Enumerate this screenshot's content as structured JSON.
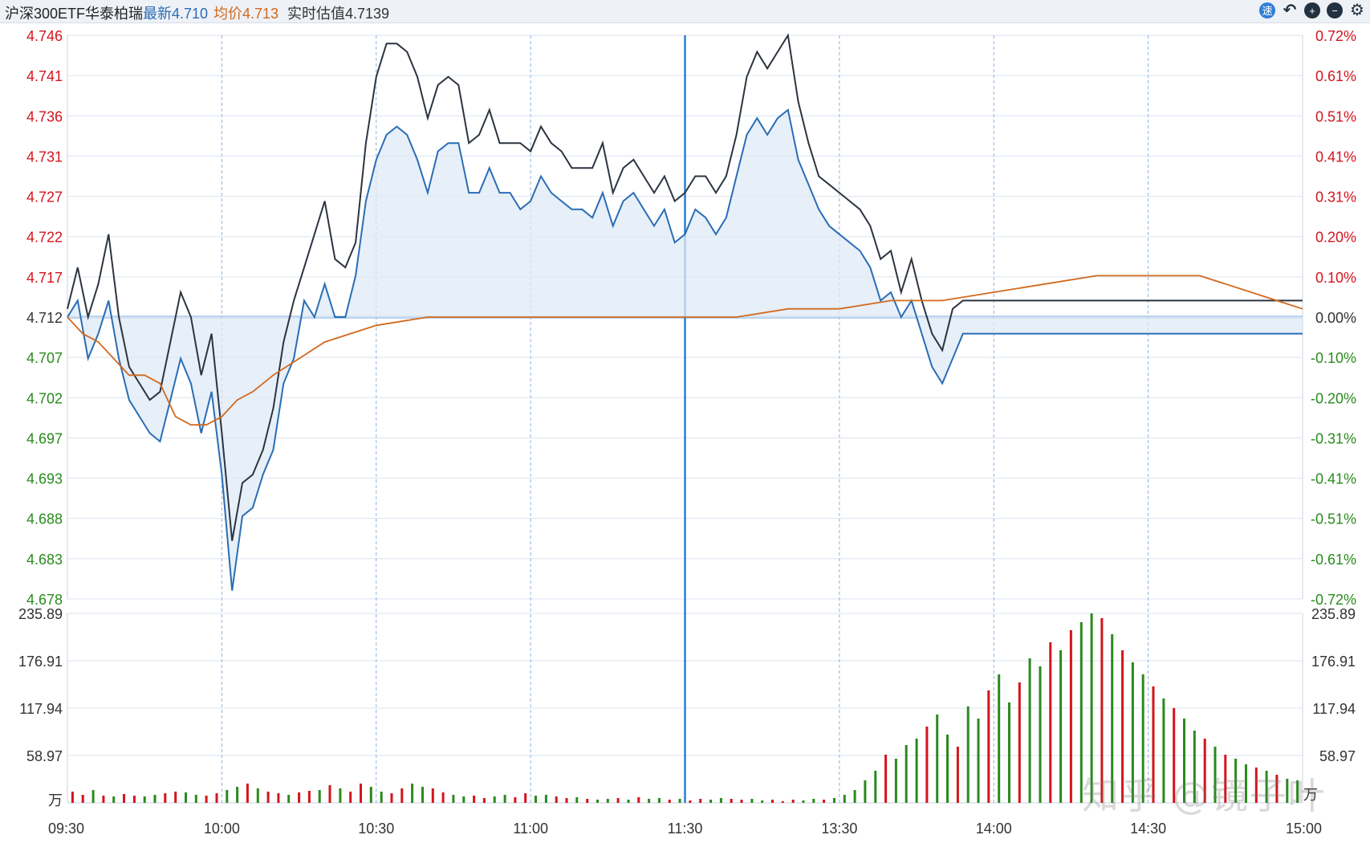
{
  "header": {
    "name": "沪深300ETF华泰柏瑞",
    "latest_label": "最新",
    "latest_value": "4.710",
    "avg_label": "均价",
    "avg_value": "4.713",
    "estimate_label": "实时估值",
    "estimate_value": "4.7139",
    "icons": [
      "speed-icon",
      "undo-icon",
      "zoom-in-icon",
      "zoom-out-icon",
      "settings-icon"
    ],
    "icon_glyphs": [
      "速",
      "↶",
      "+",
      "−",
      "⚙"
    ]
  },
  "colors": {
    "price_line": "#2a6db5",
    "estimate_line": "#2b3440",
    "avg_line": "#d2691e",
    "up": "#d4141d",
    "down": "#2a8a1e",
    "grid": "#dbe3ef",
    "dashed_grid": "#8fb4de",
    "fill": "#dfe9f6",
    "accent_blue": "#2a7fd4"
  },
  "watermark": "知乎 @镜子叶",
  "chart_data": [
    {
      "type": "line",
      "panel": "price",
      "title": "",
      "x_ticks": [
        "09:30",
        "10:00",
        "10:30",
        "11:00",
        "11:30",
        "13:30",
        "14:00",
        "14:30",
        "15:00"
      ],
      "y_left_ticks": [
        "4.746",
        "4.741",
        "4.736",
        "4.731",
        "4.727",
        "4.722",
        "4.717",
        "4.712",
        "4.707",
        "4.702",
        "4.697",
        "4.693",
        "4.688",
        "4.683",
        "4.678"
      ],
      "y_right_ticks": [
        "0.72%",
        "0.61%",
        "0.51%",
        "0.41%",
        "0.31%",
        "0.20%",
        "0.10%",
        "0.00%",
        "-0.10%",
        "-0.20%",
        "-0.31%",
        "-0.41%",
        "-0.51%",
        "-0.61%",
        "-0.72%"
      ],
      "ylim": [
        4.678,
        4.746
      ],
      "prev_close": 4.712,
      "grid": true,
      "minutes_total": 240,
      "series": [
        {
          "name": "最新",
          "role": "price",
          "x": [
            0,
            2,
            4,
            6,
            8,
            10,
            12,
            14,
            16,
            18,
            20,
            22,
            24,
            26,
            28,
            30,
            32,
            34,
            36,
            38,
            40,
            42,
            44,
            46,
            48,
            50,
            52,
            54,
            56,
            58,
            60,
            62,
            64,
            66,
            68,
            70,
            72,
            74,
            76,
            78,
            80,
            82,
            84,
            86,
            88,
            90,
            92,
            94,
            96,
            98,
            100,
            102,
            104,
            106,
            108,
            110,
            112,
            114,
            116,
            118,
            120,
            122,
            124,
            126,
            128,
            130,
            132,
            134,
            136,
            138,
            140,
            142,
            144,
            146,
            148,
            150,
            152,
            154,
            156,
            158,
            160,
            162,
            164,
            166,
            168,
            170,
            172,
            174,
            176,
            178,
            180,
            182,
            184,
            186,
            188,
            190,
            192,
            194,
            196,
            198,
            200,
            202,
            204,
            206,
            208,
            210,
            212,
            214,
            216,
            218,
            220,
            222,
            224,
            226,
            228,
            230,
            232,
            234,
            236,
            238,
            240
          ],
          "y": [
            4.712,
            4.714,
            4.707,
            4.71,
            4.714,
            4.707,
            4.702,
            4.7,
            4.698,
            4.697,
            4.702,
            4.707,
            4.704,
            4.698,
            4.703,
            4.693,
            4.679,
            4.688,
            4.689,
            4.693,
            4.696,
            4.704,
            4.707,
            4.714,
            4.712,
            4.716,
            4.712,
            4.712,
            4.717,
            4.726,
            4.731,
            4.734,
            4.735,
            4.734,
            4.731,
            4.727,
            4.732,
            4.733,
            4.733,
            4.727,
            4.727,
            4.73,
            4.727,
            4.727,
            4.725,
            4.726,
            4.729,
            4.727,
            4.726,
            4.725,
            4.725,
            4.724,
            4.727,
            4.723,
            4.726,
            4.727,
            4.725,
            4.723,
            4.725,
            4.721,
            4.722,
            4.725,
            4.724,
            4.722,
            4.724,
            4.729,
            4.734,
            4.736,
            4.734,
            4.736,
            4.737,
            4.731,
            4.728,
            4.725,
            4.723,
            4.722,
            4.721,
            4.72,
            4.718,
            4.714,
            4.715,
            4.712,
            4.714,
            4.71,
            4.706,
            4.704,
            4.707,
            4.71,
            4.71,
            4.71,
            4.71,
            4.71,
            4.71,
            4.71,
            4.71,
            4.71,
            4.71,
            4.71,
            4.71,
            4.71,
            4.71,
            4.71,
            4.71,
            4.71,
            4.71,
            4.71,
            4.71,
            4.71,
            4.71,
            4.71,
            4.71,
            4.71,
            4.71,
            4.71,
            4.71,
            4.71,
            4.71,
            4.71,
            4.71,
            4.71,
            4.71
          ]
        },
        {
          "name": "实时估值",
          "role": "estimate",
          "x": [
            0,
            2,
            4,
            6,
            8,
            10,
            12,
            14,
            16,
            18,
            20,
            22,
            24,
            26,
            28,
            30,
            32,
            34,
            36,
            38,
            40,
            42,
            44,
            46,
            48,
            50,
            52,
            54,
            56,
            58,
            60,
            62,
            64,
            66,
            68,
            70,
            72,
            74,
            76,
            78,
            80,
            82,
            84,
            86,
            88,
            90,
            92,
            94,
            96,
            98,
            100,
            102,
            104,
            106,
            108,
            110,
            112,
            114,
            116,
            118,
            120,
            122,
            124,
            126,
            128,
            130,
            132,
            134,
            136,
            138,
            140,
            142,
            144,
            146,
            148,
            150,
            152,
            154,
            156,
            158,
            160,
            162,
            164,
            166,
            168,
            170,
            172,
            174,
            176,
            178,
            180,
            182,
            184,
            186,
            188,
            190,
            192,
            194,
            196,
            198,
            200,
            202,
            204,
            206,
            208,
            210,
            212,
            214,
            216,
            218,
            220,
            222,
            224,
            226,
            228,
            230,
            232,
            234,
            236,
            238,
            240
          ],
          "y": [
            4.713,
            4.718,
            4.712,
            4.716,
            4.722,
            4.712,
            4.706,
            4.704,
            4.702,
            4.703,
            4.709,
            4.715,
            4.712,
            4.705,
            4.71,
            4.698,
            4.685,
            4.692,
            4.693,
            4.696,
            4.701,
            4.709,
            4.714,
            4.718,
            4.722,
            4.726,
            4.719,
            4.718,
            4.721,
            4.733,
            4.741,
            4.745,
            4.745,
            4.744,
            4.741,
            4.736,
            4.74,
            4.741,
            4.74,
            4.733,
            4.734,
            4.737,
            4.733,
            4.733,
            4.733,
            4.732,
            4.735,
            4.733,
            4.732,
            4.73,
            4.73,
            4.73,
            4.733,
            4.727,
            4.73,
            4.731,
            4.729,
            4.727,
            4.729,
            4.726,
            4.727,
            4.729,
            4.729,
            4.727,
            4.729,
            4.734,
            4.741,
            4.744,
            4.742,
            4.744,
            4.746,
            4.738,
            4.733,
            4.729,
            4.728,
            4.727,
            4.726,
            4.725,
            4.723,
            4.719,
            4.72,
            4.715,
            4.719,
            4.714,
            4.71,
            4.708,
            4.713,
            4.714,
            4.714,
            4.714,
            4.714,
            4.714,
            4.714,
            4.714,
            4.714,
            4.714,
            4.714,
            4.714,
            4.714,
            4.714,
            4.714,
            4.714,
            4.714,
            4.714,
            4.714,
            4.714,
            4.714,
            4.714,
            4.714,
            4.714,
            4.714,
            4.714,
            4.714,
            4.714,
            4.714,
            4.714,
            4.714,
            4.714,
            4.714,
            4.714,
            4.714
          ]
        },
        {
          "name": "均价",
          "role": "average",
          "x": [
            0,
            3,
            6,
            9,
            12,
            15,
            18,
            21,
            24,
            27,
            30,
            33,
            36,
            40,
            50,
            60,
            70,
            80,
            90,
            100,
            110,
            120,
            130,
            140,
            150,
            160,
            170,
            180,
            190,
            200,
            210,
            215,
            220,
            225,
            230,
            235,
            240
          ],
          "y": [
            4.712,
            4.71,
            4.709,
            4.707,
            4.705,
            4.705,
            4.704,
            4.7,
            4.699,
            4.699,
            4.7,
            4.702,
            4.703,
            4.705,
            4.709,
            4.711,
            4.712,
            4.712,
            4.712,
            4.712,
            4.712,
            4.712,
            4.712,
            4.713,
            4.713,
            4.714,
            4.714,
            4.715,
            4.716,
            4.717,
            4.717,
            4.717,
            4.717,
            4.716,
            4.715,
            4.714,
            4.713
          ]
        }
      ]
    },
    {
      "type": "bar",
      "panel": "volume",
      "unit": "万",
      "y_ticks": [
        "235.89",
        "176.91",
        "117.94",
        "58.97"
      ],
      "ylim": [
        0,
        235.89
      ],
      "x": [
        1,
        3,
        5,
        7,
        9,
        11,
        13,
        15,
        17,
        19,
        21,
        23,
        25,
        27,
        29,
        31,
        33,
        35,
        37,
        39,
        41,
        43,
        45,
        47,
        49,
        51,
        53,
        55,
        57,
        59,
        61,
        63,
        65,
        67,
        69,
        71,
        73,
        75,
        77,
        79,
        81,
        83,
        85,
        87,
        89,
        91,
        93,
        95,
        97,
        99,
        101,
        103,
        105,
        107,
        109,
        111,
        113,
        115,
        117,
        119,
        121,
        123,
        125,
        127,
        129,
        131,
        133,
        135,
        137,
        139,
        141,
        143,
        145,
        147,
        149,
        151,
        153,
        155,
        157,
        159,
        161,
        163,
        165,
        167,
        169,
        171,
        173,
        175,
        177,
        179,
        181,
        183,
        185,
        187,
        189,
        191,
        193,
        195,
        197,
        199,
        201,
        203,
        205,
        207,
        209,
        211,
        213,
        215,
        217,
        219,
        221,
        223,
        225,
        227,
        229,
        231,
        233,
        235,
        237,
        239
      ],
      "values": [
        14,
        10,
        16,
        9,
        8,
        11,
        9,
        8,
        10,
        12,
        14,
        13,
        10,
        9,
        12,
        16,
        20,
        24,
        18,
        14,
        12,
        10,
        13,
        15,
        16,
        22,
        18,
        14,
        24,
        20,
        14,
        12,
        18,
        24,
        20,
        18,
        13,
        10,
        8,
        9,
        6,
        8,
        10,
        7,
        12,
        9,
        10,
        8,
        6,
        7,
        5,
        4,
        5,
        6,
        4,
        7,
        5,
        6,
        4,
        5,
        3,
        5,
        4,
        6,
        5,
        4,
        5,
        3,
        4,
        2,
        4,
        3,
        5,
        4,
        6,
        10,
        16,
        28,
        40,
        60,
        55,
        72,
        80,
        95,
        110,
        85,
        70,
        120,
        105,
        140,
        160,
        125,
        150,
        180,
        170,
        200,
        190,
        215,
        225,
        236,
        230,
        210,
        190,
        175,
        160,
        145,
        130,
        118,
        105,
        90,
        80,
        70,
        60,
        55,
        48,
        44,
        40,
        35,
        30,
        28
      ],
      "directions": [
        "u",
        "u",
        "d",
        "u",
        "d",
        "u",
        "u",
        "d",
        "d",
        "u",
        "u",
        "d",
        "d",
        "u",
        "u",
        "d",
        "d",
        "u",
        "d",
        "u",
        "u",
        "d",
        "u",
        "u",
        "d",
        "u",
        "d",
        "u",
        "u",
        "d",
        "d",
        "u",
        "u",
        "d",
        "d",
        "u",
        "u",
        "d",
        "d",
        "u",
        "u",
        "d",
        "d",
        "u",
        "u",
        "d",
        "d",
        "u",
        "u",
        "d",
        "u",
        "d",
        "d",
        "u",
        "d",
        "u",
        "d",
        "d",
        "u",
        "d",
        "u",
        "u",
        "d",
        "d",
        "u",
        "u",
        "d",
        "d",
        "u",
        "u",
        "u",
        "d",
        "d",
        "u",
        "d",
        "d",
        "d",
        "d",
        "d",
        "u",
        "d",
        "d",
        "d",
        "u",
        "d",
        "d",
        "u",
        "d",
        "d",
        "u",
        "d",
        "d",
        "u",
        "d",
        "d",
        "u",
        "d",
        "u",
        "d",
        "d",
        "u",
        "d",
        "u",
        "d",
        "d",
        "u",
        "d",
        "u",
        "d",
        "d",
        "u",
        "d",
        "u",
        "d",
        "d",
        "u",
        "d",
        "u",
        "d",
        "d"
      ]
    }
  ]
}
